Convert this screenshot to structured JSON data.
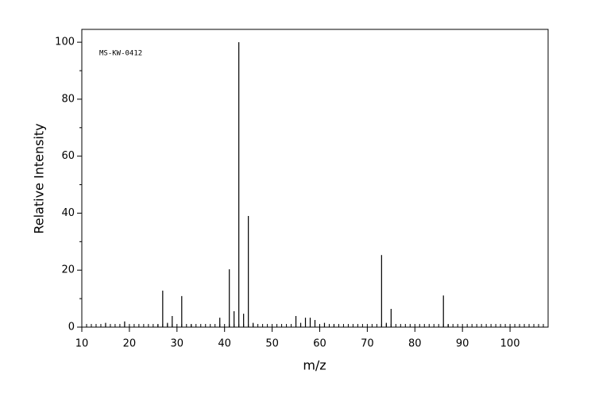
{
  "chart_data": {
    "type": "stem",
    "annotation": "MS-KW-0412",
    "x_label": "m/z",
    "y_label": "Relative Intensity",
    "x": [
      15,
      19,
      26,
      27,
      28,
      29,
      31,
      33,
      39,
      41,
      42,
      43,
      44,
      45,
      46,
      55,
      56,
      57,
      58,
      59,
      61,
      63,
      73,
      74,
      75,
      86,
      87
    ],
    "values": [
      1.5,
      2,
      1,
      12.8,
      1.5,
      3.9,
      10.9,
      1,
      3.3,
      20.3,
      5.6,
      100,
      4.7,
      39,
      1.5,
      3.9,
      1.5,
      3.3,
      3.3,
      2.5,
      1.5,
      1,
      25.3,
      1.5,
      6.4,
      11.1,
      1
    ],
    "color": "#000000",
    "xlim": [
      10,
      108
    ],
    "ylim": [
      0,
      104.5
    ],
    "xticks": [
      10,
      20,
      30,
      40,
      50,
      60,
      70,
      80,
      90,
      100
    ],
    "yticks": [
      0,
      20,
      40,
      60,
      80,
      100
    ]
  }
}
